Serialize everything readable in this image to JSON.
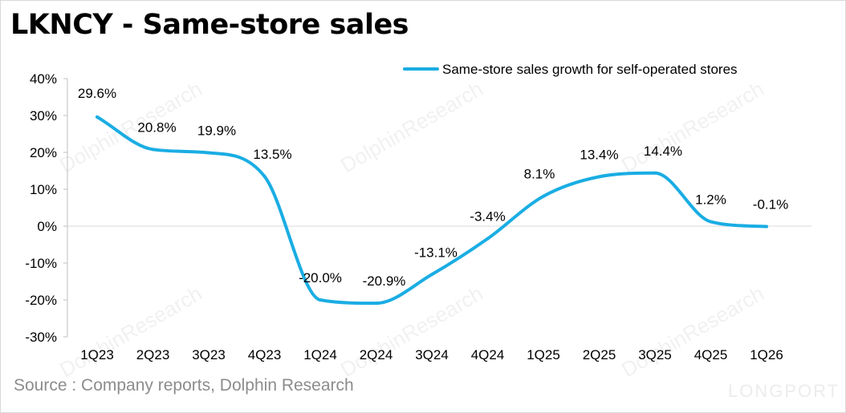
{
  "title": "LKNCY - Same-store sales",
  "source": "Source : Company reports, Dolphin Research",
  "watermarks": {
    "text": "DolphinResearch",
    "brand": "LONGPORT"
  },
  "colors": {
    "line": "#1aade3",
    "axis": "#bfbfbf",
    "text": "#000000",
    "source": "#8c8c8c"
  },
  "chart_data": {
    "type": "line",
    "categories": [
      "1Q23",
      "2Q23",
      "3Q23",
      "4Q23",
      "1Q24",
      "2Q24",
      "3Q24",
      "4Q24",
      "1Q25",
      "2Q25",
      "3Q25",
      "4Q25",
      "1Q26"
    ],
    "series": [
      {
        "name": "Same-store sales growth for self-operated stores",
        "values": [
          29.6,
          20.8,
          19.9,
          13.5,
          -20.0,
          -20.9,
          -13.1,
          -3.4,
          8.1,
          13.4,
          14.4,
          1.2,
          -0.1
        ],
        "labels": [
          "29.6%",
          "20.8%",
          "19.9%",
          "13.5%",
          "-20.0%",
          "-20.9%",
          "-13.1%",
          "-3.4%",
          "8.1%",
          "13.4%",
          "14.4%",
          "1.2%",
          "-0.1%"
        ]
      }
    ],
    "yticks": [
      "40%",
      "30%",
      "20%",
      "10%",
      "0%",
      "-10%",
      "-20%",
      "-30%"
    ],
    "ylim": [
      -30,
      40
    ],
    "smooth": true,
    "legend": "top-right",
    "grid": false
  }
}
